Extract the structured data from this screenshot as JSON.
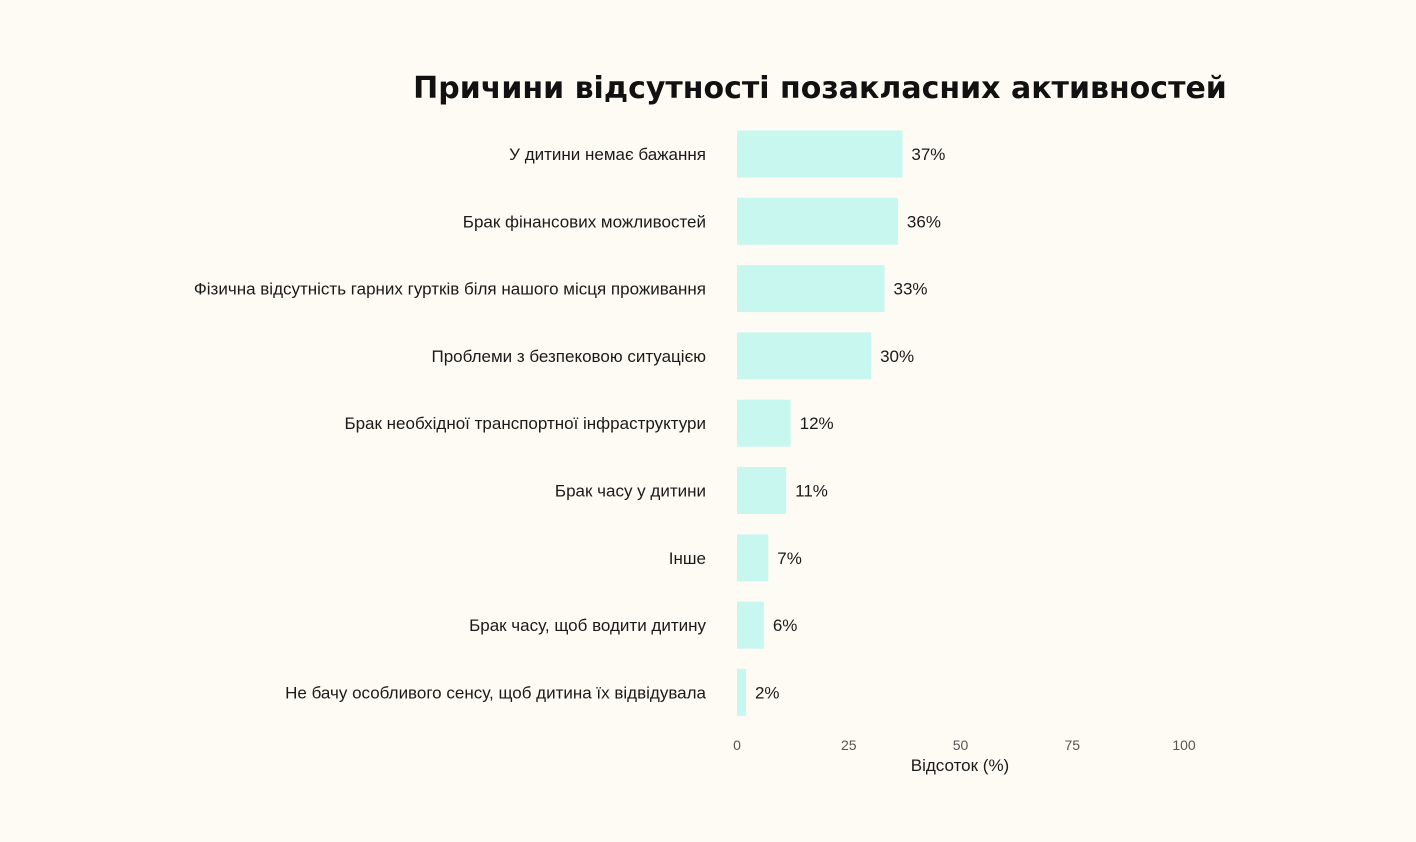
{
  "chart_data": {
    "type": "bar",
    "orientation": "horizontal",
    "title": "Причини відсутності позакласних активностей",
    "xlabel": "Відсоток (%)",
    "ylabel": "",
    "categories": [
      "У дитини немає бажання",
      "Брак фінансових можливостей",
      "Фізична відсутність гарних гуртків біля нашого місця проживання",
      "Проблеми з безпековою ситуацією",
      "Брак необхідної транспортної інфраструктури",
      "Брак часу у дитини",
      "Інше",
      "Брак часу, щоб водити дитину",
      "Не бачу особливого сенсу, щоб дитина їх відвідувала"
    ],
    "values": [
      37,
      36,
      33,
      30,
      12,
      11,
      7,
      6,
      2
    ],
    "value_labels": [
      "37%",
      "36%",
      "33%",
      "30%",
      "12%",
      "11%",
      "7%",
      "6%",
      "2%"
    ],
    "xlim": [
      0,
      100
    ],
    "xticks": [
      0,
      25,
      50,
      75,
      100
    ],
    "grid": false,
    "legend": "none",
    "colors": {
      "bar": "#c8f7ef",
      "background": "#fdfbf4",
      "text": "#1a1a1a",
      "tick": "#555555"
    }
  }
}
